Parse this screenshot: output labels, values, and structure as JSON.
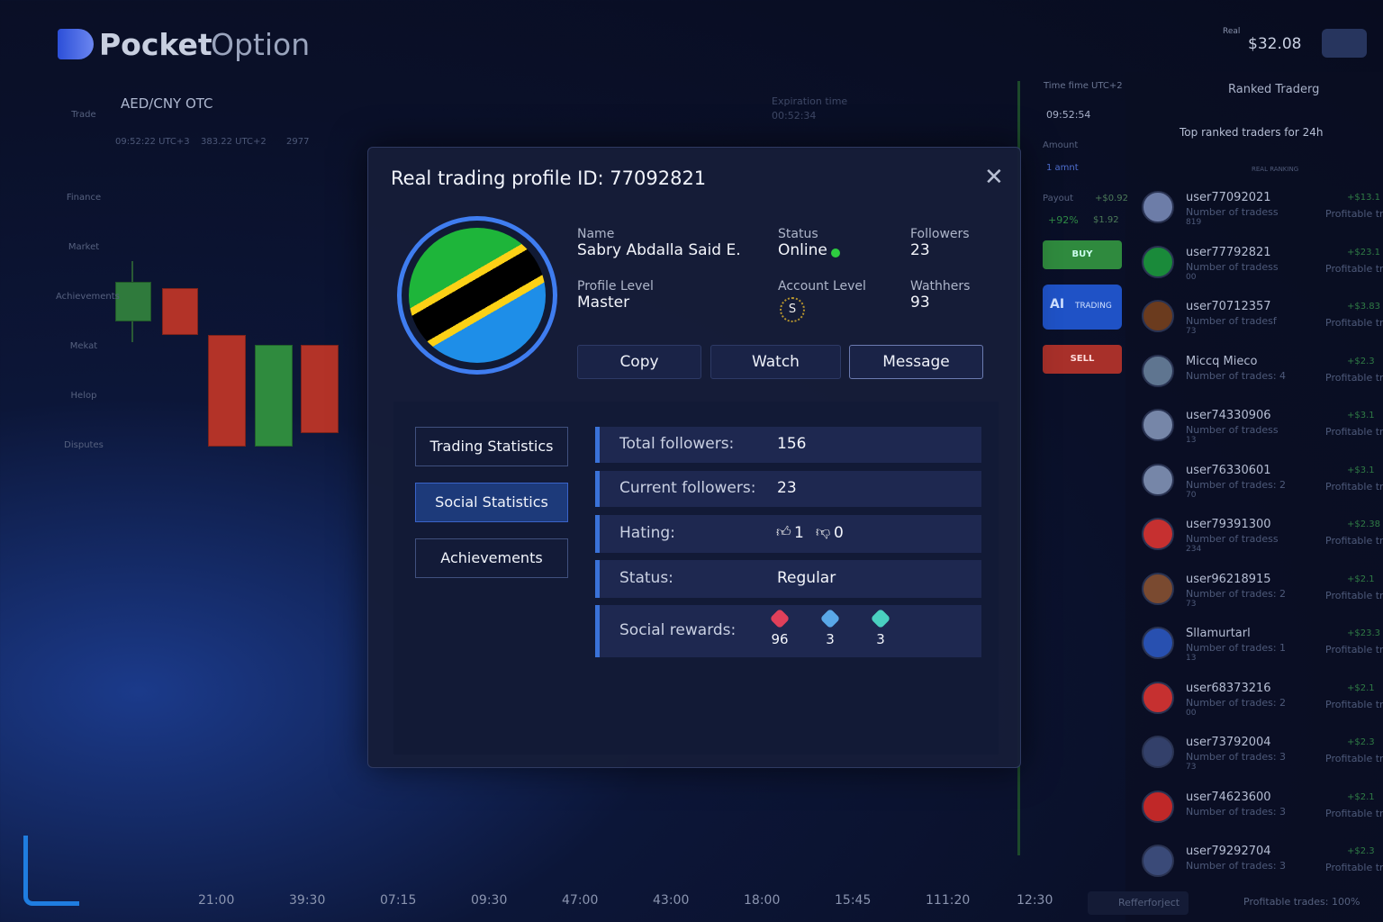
{
  "header": {
    "logo_bold": "Pocket",
    "logo_light": "Option",
    "balance_label": "Real",
    "balance": "$32.08"
  },
  "toolbar": {
    "pair": "AED/CNY OTC",
    "info": [
      "09:52:22 UTC+3",
      "383.22 UTC+2",
      "2977"
    ]
  },
  "sidebar": [
    "Trade",
    "Finance",
    "Market",
    "Achievements",
    "Mekat",
    "Helop",
    "Disputes"
  ],
  "time_axis": [
    "21:00",
    "39:30",
    "07:15",
    "09:30",
    "47:00",
    "43:00",
    "18:00",
    "15:45",
    "111:20",
    "12:30"
  ],
  "expiration": {
    "label": "Expiration time",
    "value": "00:52:34"
  },
  "trade_panel": {
    "time_label": "Time fime UTC+2",
    "time": "09:52:54",
    "amount_label": "Amount",
    "amount": "1 amnt",
    "payout_label": "Payout",
    "payout_amount": "+$0.92",
    "payout_pct": "+92%",
    "payout_value": "$1.92",
    "buy": "BUY",
    "ai_icon": "AI",
    "ai": "TRADING",
    "sell": "SELL"
  },
  "ranking": {
    "title": "Ranked Traderg",
    "filter": "Top ranked traders for 24h",
    "subheader": "REAL RANKING",
    "traders": [
      {
        "name": "user77092021",
        "trades": "Number of tradess",
        "count": "819",
        "profit": "+$13.1",
        "status": "Profitable tr"
      },
      {
        "name": "user77792821",
        "trades": "Number of tradess",
        "count": "00",
        "profit": "+$23.1",
        "status": "Profitable tr"
      },
      {
        "name": "user70712357",
        "trades": "Number of tradesf",
        "count": "73",
        "profit": "+$3.83",
        "status": "Profitable tr"
      },
      {
        "name": "Miccq Mieco",
        "trades": "Number of trades: 4",
        "count": "",
        "profit": "+$2.3",
        "status": "Profitable tr"
      },
      {
        "name": "user74330906",
        "trades": "Number of tradess",
        "count": "13",
        "profit": "+$3.1",
        "status": "Profitable tr"
      },
      {
        "name": "user76330601",
        "trades": "Number of trades: 2",
        "count": "70",
        "profit": "+$3.1",
        "status": "Profitable tr"
      },
      {
        "name": "user79391300",
        "trades": "Number of tradess",
        "count": "234",
        "profit": "+$2.38",
        "status": "Profitable tr"
      },
      {
        "name": "user96218915",
        "trades": "Number of trades: 2",
        "count": "73",
        "profit": "+$2.1",
        "status": "Profitable tr"
      },
      {
        "name": "Sllamurtarl",
        "trades": "Number of trades: 1",
        "count": "13",
        "profit": "+$23.3",
        "status": "Profitable tr"
      },
      {
        "name": "user68373216",
        "trades": "Number of trades: 2",
        "count": "00",
        "profit": "+$2.1",
        "status": "Profitable tr"
      },
      {
        "name": "user73792004",
        "trades": "Number of trades: 3",
        "count": "73",
        "profit": "+$2.3",
        "status": "Profitable tr"
      },
      {
        "name": "user74623600",
        "trades": "Number of trades: 3",
        "count": "",
        "profit": "+$2.1",
        "status": "Profitable tr"
      },
      {
        "name": "user79292704",
        "trades": "Number of trades: 3",
        "count": "",
        "profit": "+$2.3",
        "status": "Profitable tr"
      }
    ],
    "footer_link": "Refferforject",
    "footer_stat": "Profitable trades: 100%"
  },
  "modal": {
    "title": "Real trading profile ID: 77092821",
    "fields": [
      {
        "label": "Name",
        "value": "Sabry Abdalla Said E."
      },
      {
        "label": "Status",
        "value": "Online"
      },
      {
        "label": "Followers",
        "value": "23"
      },
      {
        "label": "Profile Level",
        "value": "Master"
      },
      {
        "label": "Account Level",
        "value": "S"
      },
      {
        "label": "Wathhers",
        "value": "93"
      }
    ],
    "buttons": [
      "Copy",
      "Watch",
      "Message"
    ],
    "tabs": [
      "Trading Statistics",
      "Social Statistics",
      "Achievements"
    ],
    "stats": [
      {
        "label": "Total followers:",
        "value": "156"
      },
      {
        "label": "Current followers:",
        "value": "23"
      },
      {
        "label": "Hating:",
        "likes": "1",
        "dislikes": "0"
      },
      {
        "label": "Status:",
        "value": "Regular"
      },
      {
        "label": "Social rewards:",
        "rewards": [
          "96",
          "3",
          "3"
        ]
      }
    ]
  }
}
